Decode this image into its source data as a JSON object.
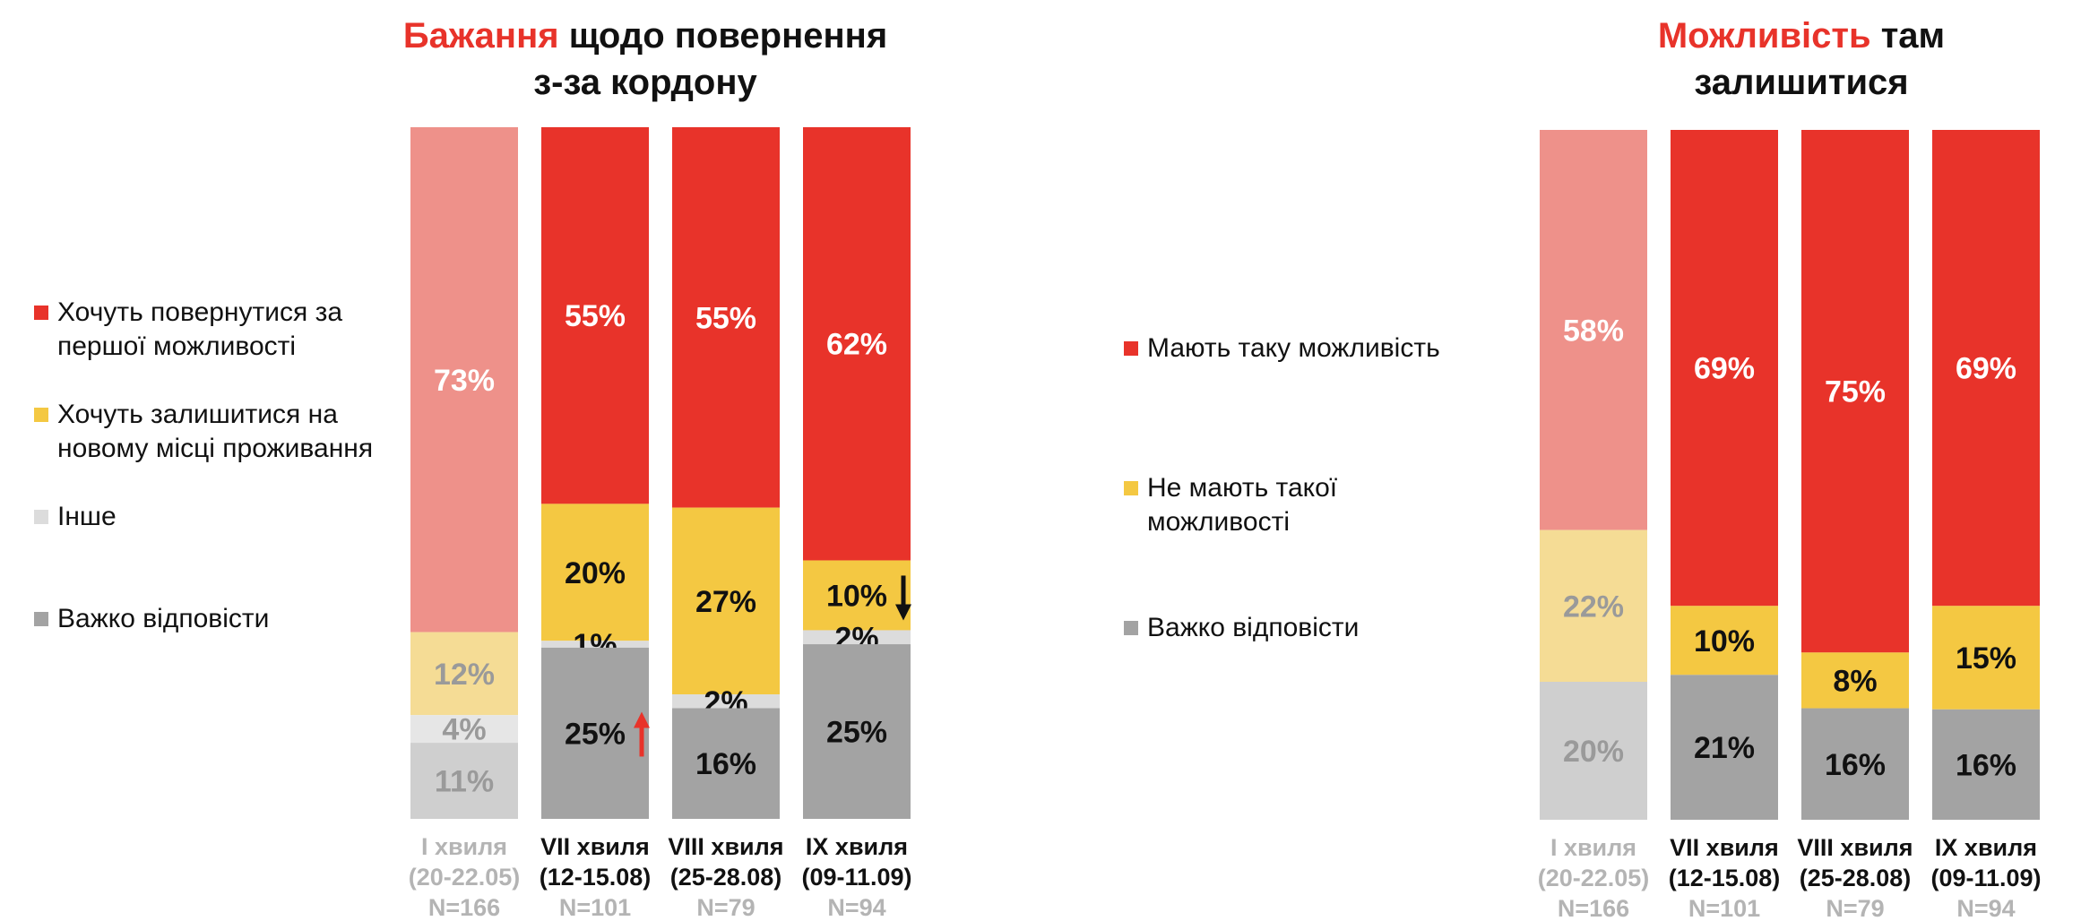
{
  "chart_data": [
    {
      "type": "stacked-bar",
      "title": {
        "highlight": "Бажання",
        "rest_line1": " щодо повернення",
        "line2": "з-за кордону"
      },
      "categories": [
        {
          "wave": "I хвиля",
          "dates": "(20-22.05)",
          "n": "N=166",
          "faded": true
        },
        {
          "wave": "VII хвиля",
          "dates": "(12-15.08)",
          "n": "N=101",
          "faded": false
        },
        {
          "wave": "VIII хвиля",
          "dates": "(25-28.08)",
          "n": "N=79",
          "faded": false
        },
        {
          "wave": "IX хвиля",
          "dates": "(09-11.09)",
          "n": "N=94",
          "faded": false
        }
      ],
      "series": [
        {
          "name": "Хочуть повернутися за першої можливості",
          "color": "#E8332A",
          "faded_color": "#EE918A",
          "values": [
            73,
            55,
            55,
            62
          ],
          "labels": [
            "73%",
            "55%",
            "55%",
            "62%"
          ]
        },
        {
          "name": "Хочуть залишитися на новому місці проживання",
          "color": "#F4C842",
          "faded_color": "#F5DC95",
          "values": [
            12,
            20,
            27,
            10
          ],
          "labels": [
            "12%",
            "20%",
            "27%",
            "10%"
          ]
        },
        {
          "name": "Інше",
          "color": "#DCDCDC",
          "faded_color": "#E6E6E6",
          "values": [
            4,
            1,
            2,
            2
          ],
          "labels": [
            "4%",
            "1%",
            "2%",
            "2%"
          ]
        },
        {
          "name": "Важко відповісти",
          "color": "#A3A3A3",
          "faded_color": "#CFCFCF",
          "values": [
            11,
            25,
            16,
            25
          ],
          "labels": [
            "11%",
            "25%",
            "16%",
            "25%"
          ]
        }
      ],
      "arrows": [
        {
          "category": 1,
          "series": 3,
          "direction": "up",
          "color": "#E8332A"
        },
        {
          "category": 3,
          "series": 1,
          "direction": "down",
          "color": "#111111"
        }
      ],
      "legend_position": "left"
    },
    {
      "type": "stacked-bar",
      "title": {
        "highlight": "Можливість",
        "rest_line1": " там",
        "line2": "залишитися"
      },
      "categories": [
        {
          "wave": "I хвиля",
          "dates": "(20-22.05)",
          "n": "N=166",
          "faded": true
        },
        {
          "wave": "VII хвиля",
          "dates": "(12-15.08)",
          "n": "N=101",
          "faded": false
        },
        {
          "wave": "VIII хвиля",
          "dates": "(25-28.08)",
          "n": "N=79",
          "faded": false
        },
        {
          "wave": "IX хвиля",
          "dates": "(09-11.09)",
          "n": "N=94",
          "faded": false
        }
      ],
      "series": [
        {
          "name": "Мають таку можливість",
          "color": "#E8332A",
          "faded_color": "#EE918A",
          "values": [
            58,
            69,
            75,
            69
          ],
          "labels": [
            "58%",
            "69%",
            "75%",
            "69%"
          ]
        },
        {
          "name": "Не мають такої можливості",
          "color": "#F4C842",
          "faded_color": "#F5DC95",
          "values": [
            22,
            10,
            8,
            15
          ],
          "labels": [
            "22%",
            "10%",
            "8%",
            "15%"
          ]
        },
        {
          "name": "Важко відповісти",
          "color": "#A3A3A3",
          "faded_color": "#CFCFCF",
          "values": [
            20,
            21,
            16,
            16
          ],
          "labels": [
            "20%",
            "21%",
            "16%",
            "16%"
          ]
        }
      ],
      "arrows": [],
      "legend_position": "left"
    }
  ]
}
